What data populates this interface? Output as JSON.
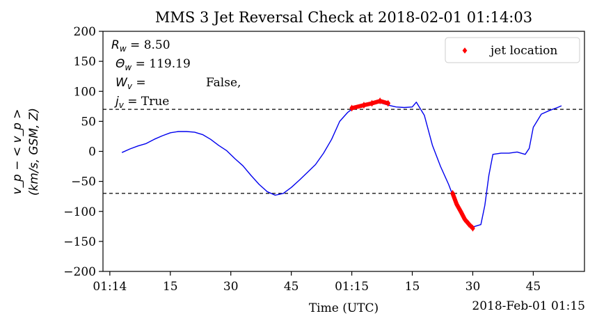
{
  "chart_data": {
    "type": "line",
    "title": "MMS 3 Jet Reversal Check at 2018-02-01 01:14:03",
    "xlabel": "Time (UTC)",
    "x_offset_label": "2018-Feb-01 01:15",
    "ylabel_line1": "v_p − < v_p >",
    "ylabel_line2": "(km/s, GSM, Z)",
    "ylim": [
      -200,
      200
    ],
    "yticks": [
      -200,
      -150,
      -100,
      -50,
      0,
      50,
      100,
      150,
      200
    ],
    "yticklabels": [
      "−200",
      "−150",
      "−100",
      "−50",
      "0",
      "50",
      "100",
      "150",
      "200"
    ],
    "xlim": [
      "01:14:03",
      "01:15:52"
    ],
    "xticks": [
      {
        "t": "01:14:00",
        "label": "01:14"
      },
      {
        "t": "01:14:15",
        "label": "15"
      },
      {
        "t": "01:14:30",
        "label": "30"
      },
      {
        "t": "01:14:45",
        "label": "45"
      },
      {
        "t": "01:15:00",
        "label": "01:15"
      },
      {
        "t": "01:15:15",
        "label": "15"
      },
      {
        "t": "01:15:30",
        "label": "30"
      },
      {
        "t": "01:15:45",
        "label": "45"
      }
    ],
    "thresholds": [
      70,
      -70
    ],
    "series": [
      {
        "kind": "line",
        "color": "#0000ee",
        "points": [
          [
            "01:14:03",
            -2
          ],
          [
            "01:14:05",
            4
          ],
          [
            "01:14:07",
            9
          ],
          [
            "01:14:09",
            13
          ],
          [
            "01:14:11",
            20
          ],
          [
            "01:14:13",
            26
          ],
          [
            "01:14:15",
            31
          ],
          [
            "01:14:17",
            33
          ],
          [
            "01:14:19",
            33
          ],
          [
            "01:14:21",
            32
          ],
          [
            "01:14:23",
            28
          ],
          [
            "01:14:25",
            20
          ],
          [
            "01:14:27",
            10
          ],
          [
            "01:14:29",
            1
          ],
          [
            "01:14:31",
            -12
          ],
          [
            "01:14:33",
            -24
          ],
          [
            "01:14:35",
            -40
          ],
          [
            "01:14:37",
            -55
          ],
          [
            "01:14:39",
            -67
          ],
          [
            "01:14:41",
            -73
          ],
          [
            "01:14:43",
            -70
          ],
          [
            "01:14:45",
            -60
          ],
          [
            "01:14:47",
            -48
          ],
          [
            "01:14:49",
            -35
          ],
          [
            "01:14:51",
            -22
          ],
          [
            "01:14:53",
            -3
          ],
          [
            "01:14:55",
            20
          ],
          [
            "01:14:57",
            50
          ],
          [
            "01:14:59",
            65
          ],
          [
            "01:15:00",
            70
          ],
          [
            "01:15:01",
            71
          ],
          [
            "01:15:03",
            76
          ],
          [
            "01:15:05",
            80
          ],
          [
            "01:15:07",
            81
          ],
          [
            "01:15:09",
            77
          ],
          [
            "01:15:11",
            74
          ],
          [
            "01:15:13",
            73
          ],
          [
            "01:15:15",
            74
          ],
          [
            "01:15:16",
            82
          ],
          [
            "01:15:18",
            60
          ],
          [
            "01:15:20",
            10
          ],
          [
            "01:15:22",
            -25
          ],
          [
            "01:15:24",
            -55
          ],
          [
            "01:15:26",
            -90
          ],
          [
            "01:15:28",
            -113
          ],
          [
            "01:15:30",
            -126
          ],
          [
            "01:15:32",
            -122
          ],
          [
            "01:15:33",
            -90
          ],
          [
            "01:15:34",
            -40
          ],
          [
            "01:15:35",
            -5
          ],
          [
            "01:15:37",
            -3
          ],
          [
            "01:15:39",
            -3
          ],
          [
            "01:15:41",
            -1
          ],
          [
            "01:15:43",
            -5
          ],
          [
            "01:15:44",
            5
          ],
          [
            "01:15:45",
            40
          ],
          [
            "01:15:47",
            62
          ],
          [
            "01:15:49",
            68
          ],
          [
            "01:15:51",
            73
          ],
          [
            "01:15:52",
            76
          ]
        ]
      },
      {
        "kind": "markers",
        "name": "jet location",
        "color": "#ff0000",
        "segments": [
          [
            [
              "01:15:00",
              72
            ],
            [
              "01:15:03",
              77
            ],
            [
              "01:15:05",
              80
            ],
            [
              "01:15:07",
              84
            ],
            [
              "01:15:09",
              80
            ]
          ],
          [
            [
              "01:15:25",
              -70
            ],
            [
              "01:15:26",
              -88
            ],
            [
              "01:15:27",
              -100
            ],
            [
              "01:15:28",
              -113
            ],
            [
              "01:15:29",
              -121
            ],
            [
              "01:15:30",
              -128
            ]
          ]
        ]
      }
    ],
    "legend": {
      "position": "top-right",
      "label": "jet location",
      "marker_glyph": "♦"
    },
    "annotations": {
      "r_sym": "R",
      "r_sub": "w",
      "r_val": " = 8.50",
      "theta_sym": "Θ",
      "theta_sub": "w",
      "theta_val": " = 119.19",
      "w_sym": "W",
      "w_sub": "v",
      "w_val": " =                False,",
      "j_sym": "j",
      "j_sub": "v",
      "j_val": " = True"
    },
    "grid": false
  }
}
